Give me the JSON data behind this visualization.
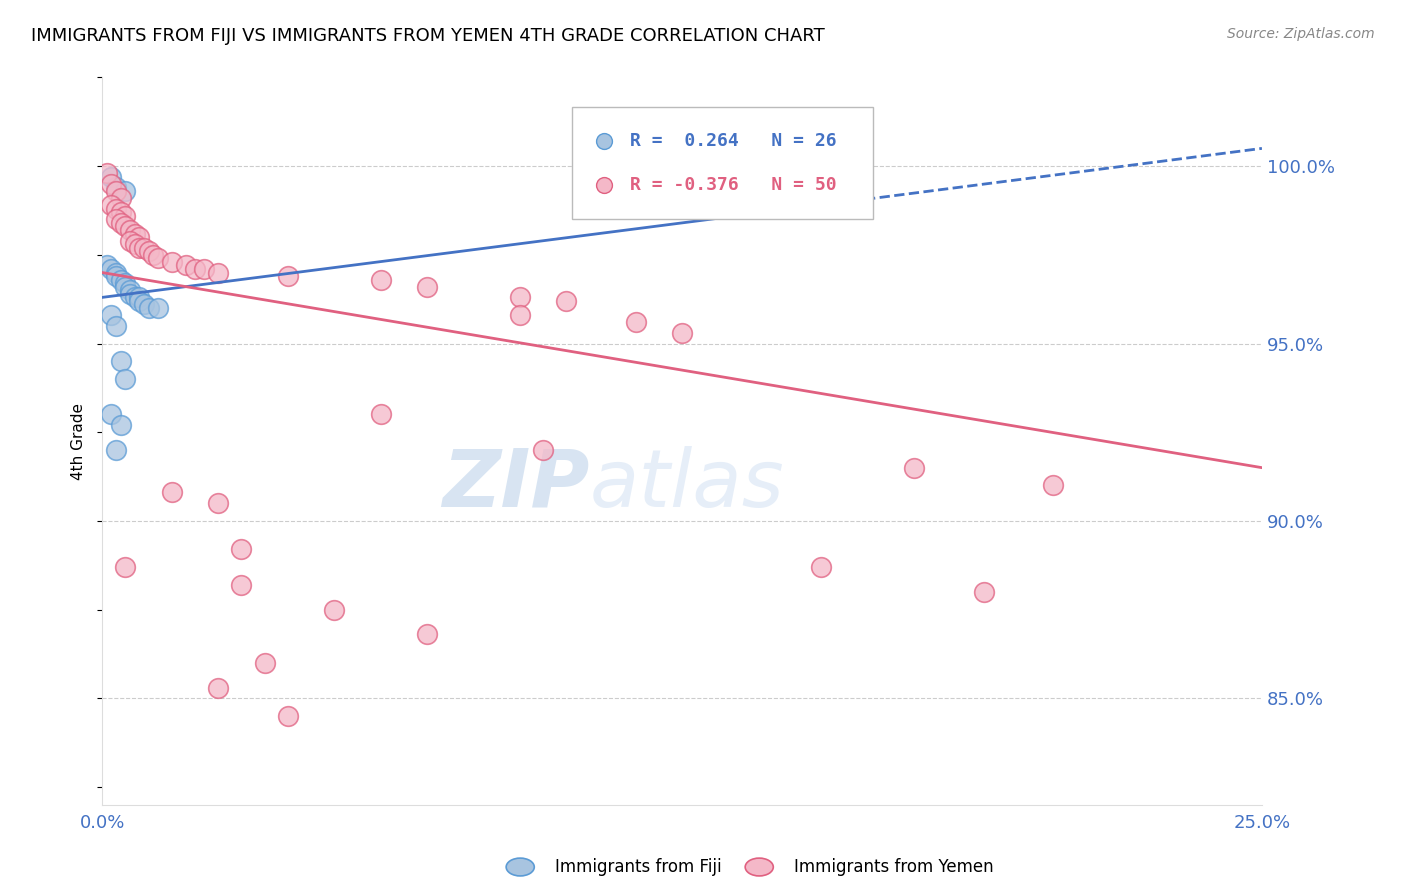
{
  "title": "IMMIGRANTS FROM FIJI VS IMMIGRANTS FROM YEMEN 4TH GRADE CORRELATION CHART",
  "source": "Source: ZipAtlas.com",
  "ylabel": "4th Grade",
  "xmin": 0.0,
  "xmax": 0.25,
  "ymin": 0.82,
  "ymax": 1.025,
  "yticks": [
    0.85,
    0.9,
    0.95,
    1.0
  ],
  "ytick_labels": [
    "85.0%",
    "90.0%",
    "95.0%",
    "100.0%"
  ],
  "xticks": [
    0.0,
    0.05,
    0.1,
    0.15,
    0.2,
    0.25
  ],
  "xtick_labels": [
    "0.0%",
    "",
    "",
    "",
    "",
    "25.0%"
  ],
  "fiji_color": "#a8c4e0",
  "fiji_edge_color": "#5b9bd5",
  "yemen_color": "#f4b8c8",
  "yemen_edge_color": "#e06080",
  "fiji_R": 0.264,
  "fiji_N": 26,
  "yemen_R": -0.376,
  "yemen_N": 50,
  "fiji_points": [
    [
      0.002,
      0.997
    ],
    [
      0.003,
      0.994
    ],
    [
      0.005,
      0.993
    ],
    [
      0.001,
      0.972
    ],
    [
      0.002,
      0.971
    ],
    [
      0.003,
      0.97
    ],
    [
      0.003,
      0.969
    ],
    [
      0.004,
      0.968
    ],
    [
      0.005,
      0.967
    ],
    [
      0.005,
      0.966
    ],
    [
      0.006,
      0.965
    ],
    [
      0.006,
      0.964
    ],
    [
      0.007,
      0.963
    ],
    [
      0.008,
      0.963
    ],
    [
      0.008,
      0.962
    ],
    [
      0.009,
      0.961
    ],
    [
      0.01,
      0.96
    ],
    [
      0.012,
      0.96
    ],
    [
      0.002,
      0.958
    ],
    [
      0.003,
      0.955
    ],
    [
      0.004,
      0.945
    ],
    [
      0.005,
      0.94
    ],
    [
      0.002,
      0.93
    ],
    [
      0.004,
      0.927
    ],
    [
      0.003,
      0.92
    ],
    [
      0.155,
      1.0
    ]
  ],
  "yemen_points": [
    [
      0.001,
      0.998
    ],
    [
      0.002,
      0.995
    ],
    [
      0.003,
      0.993
    ],
    [
      0.004,
      0.991
    ],
    [
      0.002,
      0.989
    ],
    [
      0.003,
      0.988
    ],
    [
      0.004,
      0.987
    ],
    [
      0.005,
      0.986
    ],
    [
      0.003,
      0.985
    ],
    [
      0.004,
      0.984
    ],
    [
      0.005,
      0.983
    ],
    [
      0.006,
      0.982
    ],
    [
      0.007,
      0.981
    ],
    [
      0.008,
      0.98
    ],
    [
      0.006,
      0.979
    ],
    [
      0.007,
      0.978
    ],
    [
      0.008,
      0.977
    ],
    [
      0.009,
      0.977
    ],
    [
      0.01,
      0.976
    ],
    [
      0.011,
      0.975
    ],
    [
      0.012,
      0.974
    ],
    [
      0.015,
      0.973
    ],
    [
      0.018,
      0.972
    ],
    [
      0.02,
      0.971
    ],
    [
      0.022,
      0.971
    ],
    [
      0.025,
      0.97
    ],
    [
      0.04,
      0.969
    ],
    [
      0.06,
      0.968
    ],
    [
      0.07,
      0.966
    ],
    [
      0.09,
      0.963
    ],
    [
      0.1,
      0.962
    ],
    [
      0.09,
      0.958
    ],
    [
      0.115,
      0.956
    ],
    [
      0.125,
      0.953
    ],
    [
      0.06,
      0.93
    ],
    [
      0.095,
      0.92
    ],
    [
      0.175,
      0.915
    ],
    [
      0.205,
      0.91
    ],
    [
      0.015,
      0.908
    ],
    [
      0.025,
      0.905
    ],
    [
      0.03,
      0.892
    ],
    [
      0.005,
      0.887
    ],
    [
      0.155,
      0.887
    ],
    [
      0.03,
      0.882
    ],
    [
      0.19,
      0.88
    ],
    [
      0.05,
      0.875
    ],
    [
      0.07,
      0.868
    ],
    [
      0.035,
      0.86
    ],
    [
      0.025,
      0.853
    ],
    [
      0.04,
      0.845
    ]
  ],
  "fiji_line_color": "#4472c4",
  "fiji_line_style": "solid",
  "yemen_line_color": "#e06080",
  "yemen_line_style": "solid",
  "fiji_line_x": [
    0.0,
    0.25
  ],
  "fiji_line_y": [
    0.963,
    1.005
  ],
  "yemen_line_x": [
    0.0,
    0.25
  ],
  "yemen_line_y": [
    0.97,
    0.915
  ],
  "background_color": "#ffffff",
  "grid_color": "#cccccc",
  "axis_color": "#4472c4",
  "watermark": "ZIPatlas"
}
